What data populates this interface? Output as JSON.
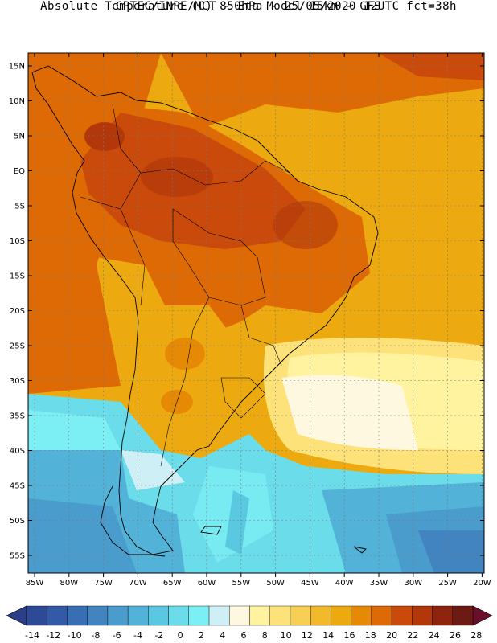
{
  "header": {
    "line1": "CPTEC/INPE/MCT -   Eta Model 15km - GFS",
    "line2": "Absolute Temperature (C) 850hPa - 25/05/2020 12UTC fct=38h"
  },
  "map": {
    "lon_labels": [
      "85W",
      "80W",
      "75W",
      "70W",
      "65W",
      "60W",
      "55W",
      "50W",
      "45W",
      "40W",
      "35W",
      "30W",
      "25W",
      "20W"
    ],
    "lat_labels": [
      "15N",
      "10N",
      "5N",
      "EQ",
      "5S",
      "10S",
      "15S",
      "20S",
      "25S",
      "30S",
      "35S",
      "40S",
      "45S",
      "50S",
      "55S"
    ],
    "gridlines": true,
    "region": "South America"
  },
  "colorbar": {
    "ticks": [
      "-14",
      "-12",
      "-10",
      "-8",
      "-6",
      "-4",
      "-2",
      "0",
      "2",
      "4",
      "6",
      "8",
      "10",
      "12",
      "14",
      "16",
      "18",
      "20",
      "22",
      "24",
      "26",
      "28"
    ],
    "colors": [
      "#2d4a96",
      "#335aa6",
      "#3a6eb4",
      "#4184c0",
      "#4a9ccc",
      "#52b2d8",
      "#5bc8e2",
      "#6adcea",
      "#7ceff4",
      "#cfeff7",
      "#fff8e0",
      "#fff3a0",
      "#fde27a",
      "#f7cf55",
      "#f1b92b",
      "#ecaa10",
      "#e68a05",
      "#de6a05",
      "#c94a0a",
      "#b2380c",
      "#8e2410",
      "#6c1a14"
    ],
    "low_arrow_color": "#2b3f88",
    "high_arrow_color": "#6a0f2a"
  }
}
